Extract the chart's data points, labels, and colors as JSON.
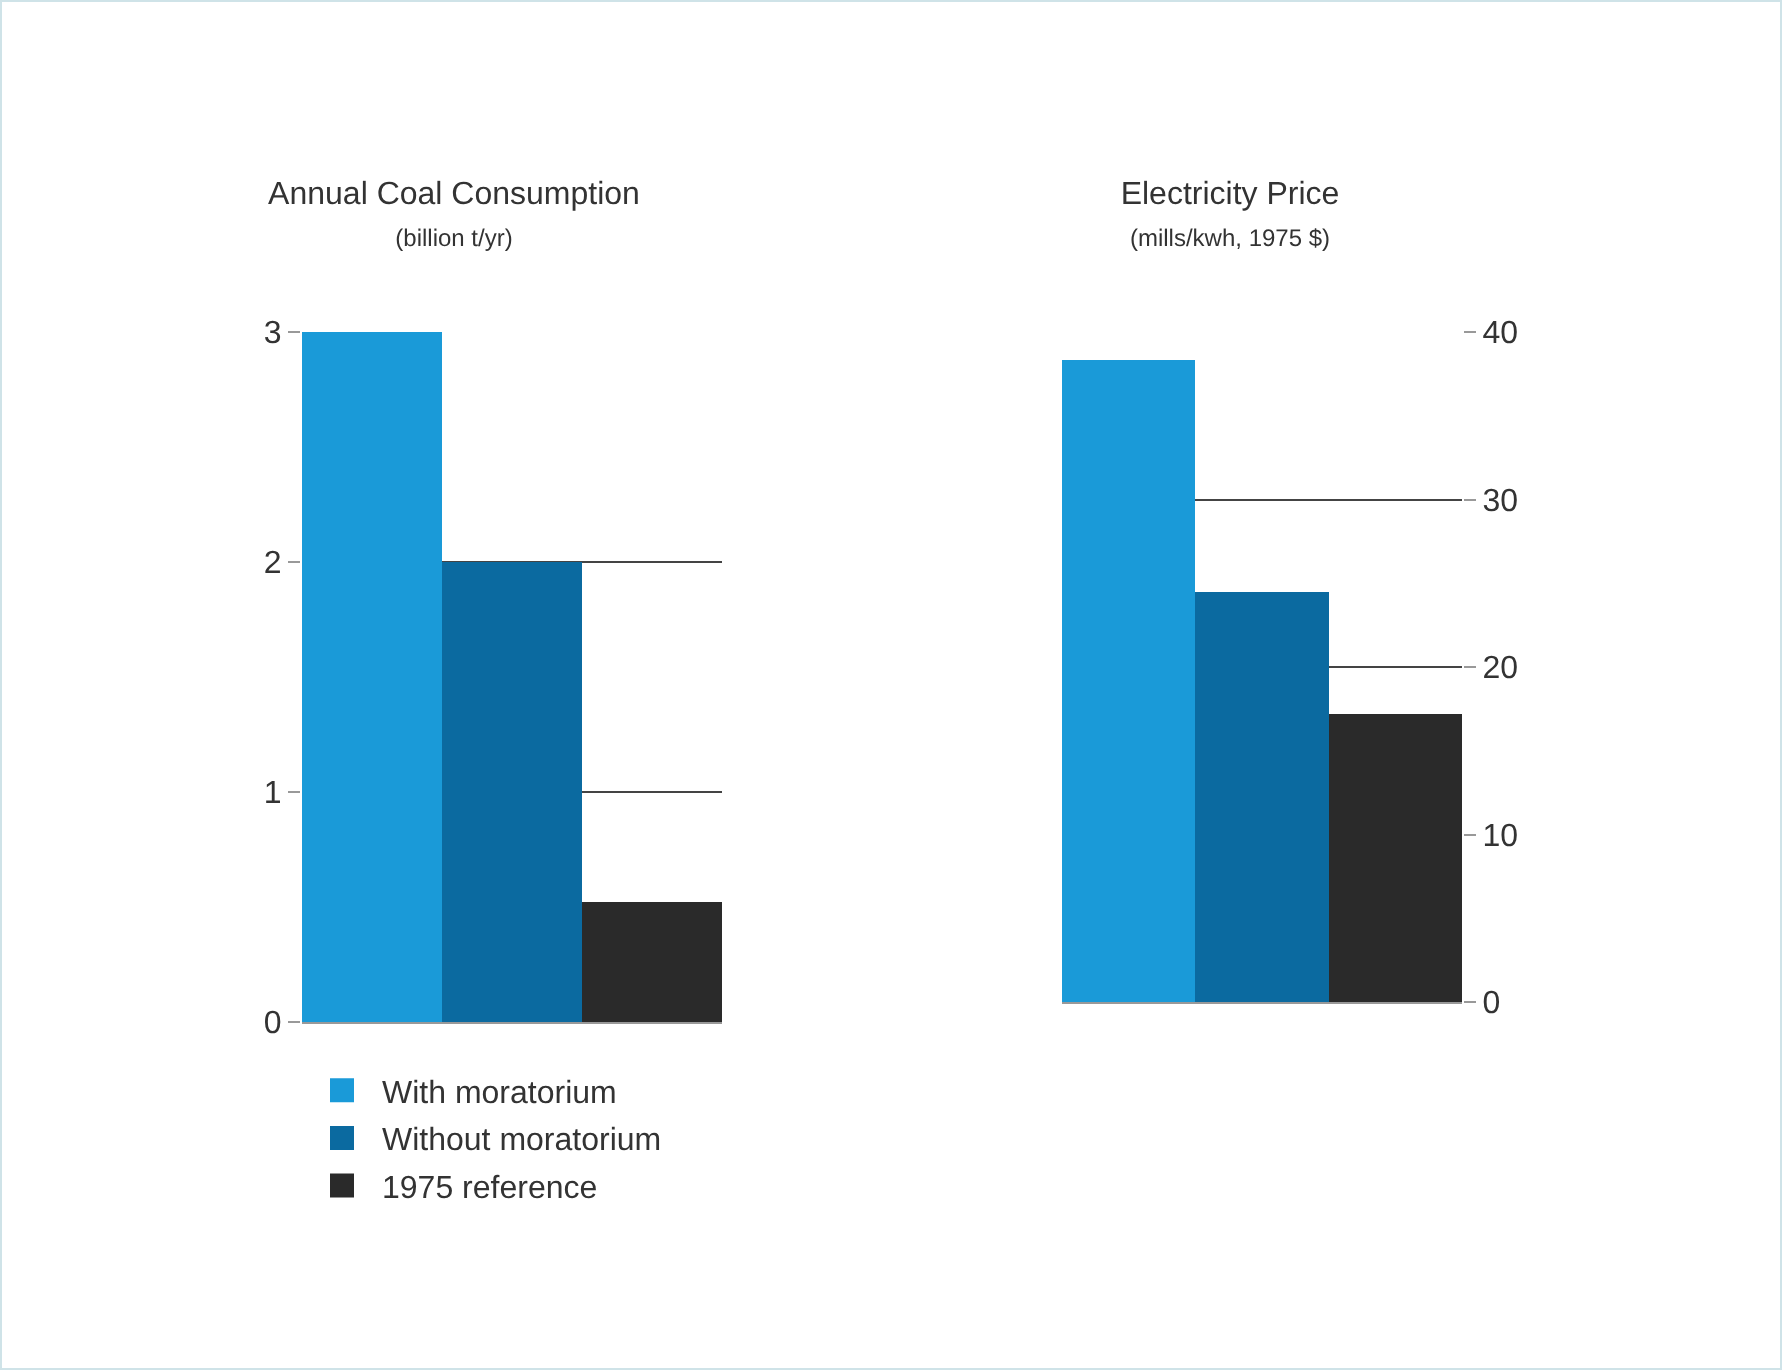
{
  "chart_data": [
    {
      "type": "bar",
      "title": "Annual Coal Consumption",
      "subtitle": "(billion t/yr)",
      "categories": [
        null
      ],
      "series": [
        {
          "name": "With moratorium",
          "color": "#1a9ad8",
          "values": [
            3.0
          ]
        },
        {
          "name": "Without moratorium",
          "color": "#0b6aa0",
          "values": [
            2.0
          ]
        },
        {
          "name": "1975 reference",
          "color": "#2a2a2a",
          "values": [
            0.52
          ]
        }
      ],
      "ylim": [
        0,
        3
      ],
      "yticks": [
        0,
        1,
        2,
        3
      ],
      "grid": "y",
      "legend": "bottom",
      "tick_labels": "y"
    },
    {
      "type": "bar",
      "title": "Electricity Price",
      "subtitle": "(mills/kwh, 1975 $)",
      "categories": [
        null
      ],
      "series": [
        {
          "color": "#1a9ad8",
          "values": [
            38.3
          ]
        },
        {
          "color": "#0b6aa0",
          "values": [
            24.5
          ]
        },
        {
          "color": "#2a2a2a",
          "values": [
            17.2
          ]
        }
      ],
      "ylim": [
        0,
        40
      ],
      "yticks": [
        0,
        10,
        20,
        30,
        40
      ],
      "grid": "y",
      "tick_labels": "y"
    }
  ]
}
